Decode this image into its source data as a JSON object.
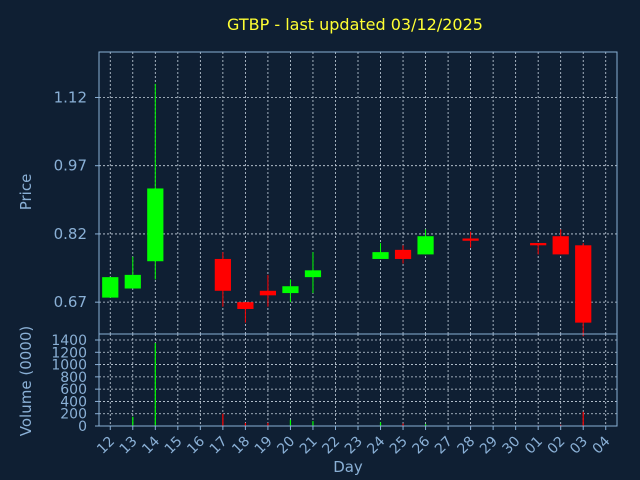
{
  "chart_data": {
    "type": "candlestick",
    "title": "GTBP - last updated 03/12/2025",
    "xlabel": "Day",
    "price_panel": {
      "ylabel": "Price",
      "yticks": [
        "0.67",
        "0.82",
        "0.97",
        "1.12"
      ],
      "ylim": [
        0.6,
        1.22
      ]
    },
    "volume_panel": {
      "ylabel": "Volume (0000)",
      "yticks": [
        "0",
        "200",
        "400",
        "600",
        "800",
        "1000",
        "1200",
        "1400"
      ],
      "ylim": [
        0,
        1400
      ]
    },
    "x_labels": [
      "12",
      "13",
      "14",
      "15",
      "16",
      "17",
      "18",
      "19",
      "20",
      "21",
      "22",
      "23",
      "24",
      "25",
      "26",
      "27",
      "28",
      "29",
      "30",
      "01",
      "02",
      "03",
      "04"
    ],
    "grid": true,
    "colors": {
      "up": "#00ff00",
      "down": "#ff0000",
      "background": "#0f1f33",
      "text": "#8ab0d6",
      "title": "#ffff33"
    },
    "candles": [
      {
        "day": "12",
        "open": 0.68,
        "close": 0.725,
        "high": 0.725,
        "low": 0.68,
        "volume": 0
      },
      {
        "day": "13",
        "open": 0.7,
        "close": 0.73,
        "high": 0.77,
        "low": 0.7,
        "volume": 150
      },
      {
        "day": "14",
        "open": 0.76,
        "close": 0.92,
        "high": 1.15,
        "low": 0.72,
        "volume": 1350
      },
      {
        "day": "17",
        "open": 0.765,
        "close": 0.695,
        "high": 0.78,
        "low": 0.66,
        "volume": 200
      },
      {
        "day": "18",
        "open": 0.67,
        "close": 0.655,
        "high": 0.67,
        "low": 0.625,
        "volume": 50
      },
      {
        "day": "19",
        "open": 0.695,
        "close": 0.685,
        "high": 0.73,
        "low": 0.66,
        "volume": 50
      },
      {
        "day": "20",
        "open": 0.69,
        "close": 0.705,
        "high": 0.72,
        "low": 0.67,
        "volume": 100
      },
      {
        "day": "21",
        "open": 0.725,
        "close": 0.74,
        "high": 0.78,
        "low": 0.69,
        "volume": 80
      },
      {
        "day": "24",
        "open": 0.765,
        "close": 0.78,
        "high": 0.8,
        "low": 0.765,
        "volume": 60
      },
      {
        "day": "25",
        "open": 0.785,
        "close": 0.765,
        "high": 0.795,
        "low": 0.755,
        "volume": 40
      },
      {
        "day": "26",
        "open": 0.775,
        "close": 0.815,
        "high": 0.83,
        "low": 0.775,
        "volume": 30
      },
      {
        "day": "28",
        "open": 0.81,
        "close": 0.805,
        "high": 0.825,
        "low": 0.79,
        "volume": 10
      },
      {
        "day": "01",
        "open": 0.8,
        "close": 0.795,
        "high": 0.8,
        "low": 0.775,
        "volume": 10
      },
      {
        "day": "02",
        "open": 0.815,
        "close": 0.775,
        "high": 0.83,
        "low": 0.775,
        "volume": 20
      },
      {
        "day": "03",
        "open": 0.795,
        "close": 0.625,
        "high": 0.8,
        "low": 0.595,
        "volume": 230
      }
    ]
  }
}
